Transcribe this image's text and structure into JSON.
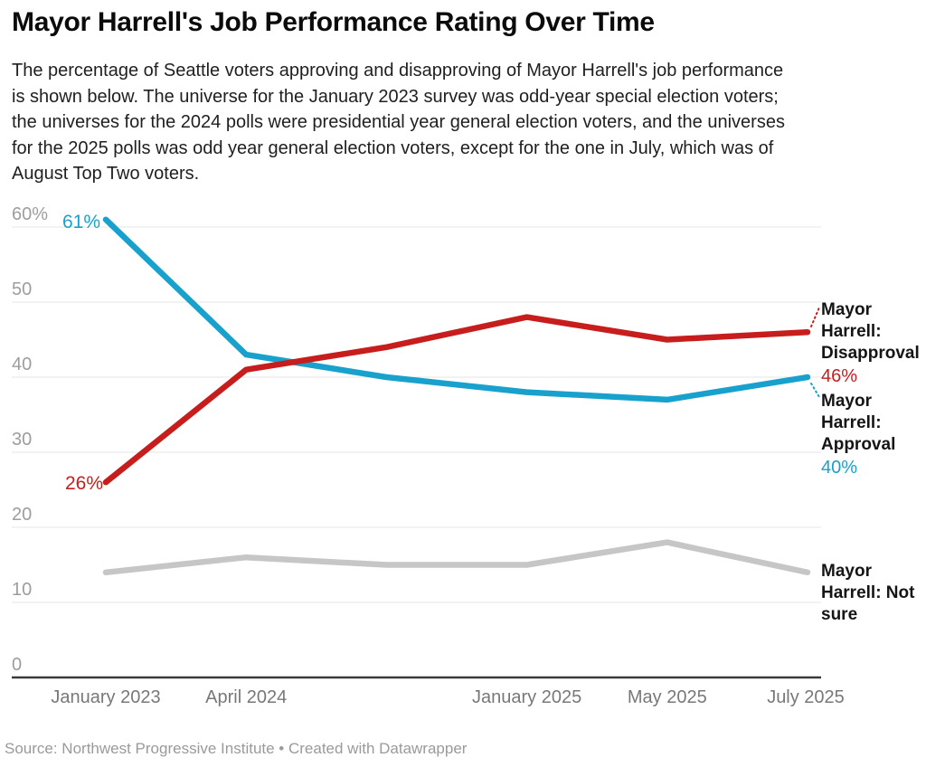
{
  "title": "Mayor Harrell's Job Performance Rating Over Time",
  "description_lines": [
    "The percentage of Seattle voters approving and disapproving of Mayor Harrell's job performance",
    "is shown below. The universe for the January 2023 survey was odd-year special election voters;",
    "the universes for the 2024 polls were presidential year general election voters, and the universes",
    "for the 2025 polls was odd year general election voters, except for the one in July, which was of",
    "August Top Two voters."
  ],
  "source": "Source: Northwest Progressive Institute • Created with Datawrapper",
  "colors": {
    "approval": "#18a1cd",
    "disapproval": "#c71e1d",
    "not_sure": "#c6c6c6",
    "grid": "#e4e4e4",
    "axis": "#3a3a3a",
    "y_tick_label": "#9d9d9d",
    "x_tick_label": "#787878",
    "side_label_text": "#151515"
  },
  "chart_data": {
    "type": "line",
    "categories": [
      "January 2023",
      "April 2024",
      "",
      "January 2025",
      "May 2025",
      "July 2025"
    ],
    "x_tick_labels": [
      "January 2023",
      "April 2024",
      "January 2025",
      "May 2025",
      "July 2025"
    ],
    "series": [
      {
        "name": "Mayor Harrell: Approval",
        "color": "#18a1cd",
        "values": [
          61,
          43,
          40,
          38,
          37,
          40
        ],
        "start_label": "61%",
        "end_label": "40%"
      },
      {
        "name": "Mayor Harrell: Disapproval",
        "color": "#c71e1d",
        "values": [
          26,
          41,
          44,
          48,
          45,
          46
        ],
        "start_label": "26%",
        "end_label": "46%"
      },
      {
        "name": "Mayor Harrell: Not sure",
        "color": "#c6c6c6",
        "values": [
          14,
          16,
          15,
          15,
          18,
          14
        ]
      }
    ],
    "ylabel": "",
    "xlabel": "",
    "ylim": [
      0,
      62
    ],
    "yticks": [
      "60%",
      "50",
      "40",
      "30",
      "20",
      "10",
      "0"
    ],
    "grid": "horizontal",
    "legend_position": "right-of-line-ends"
  }
}
